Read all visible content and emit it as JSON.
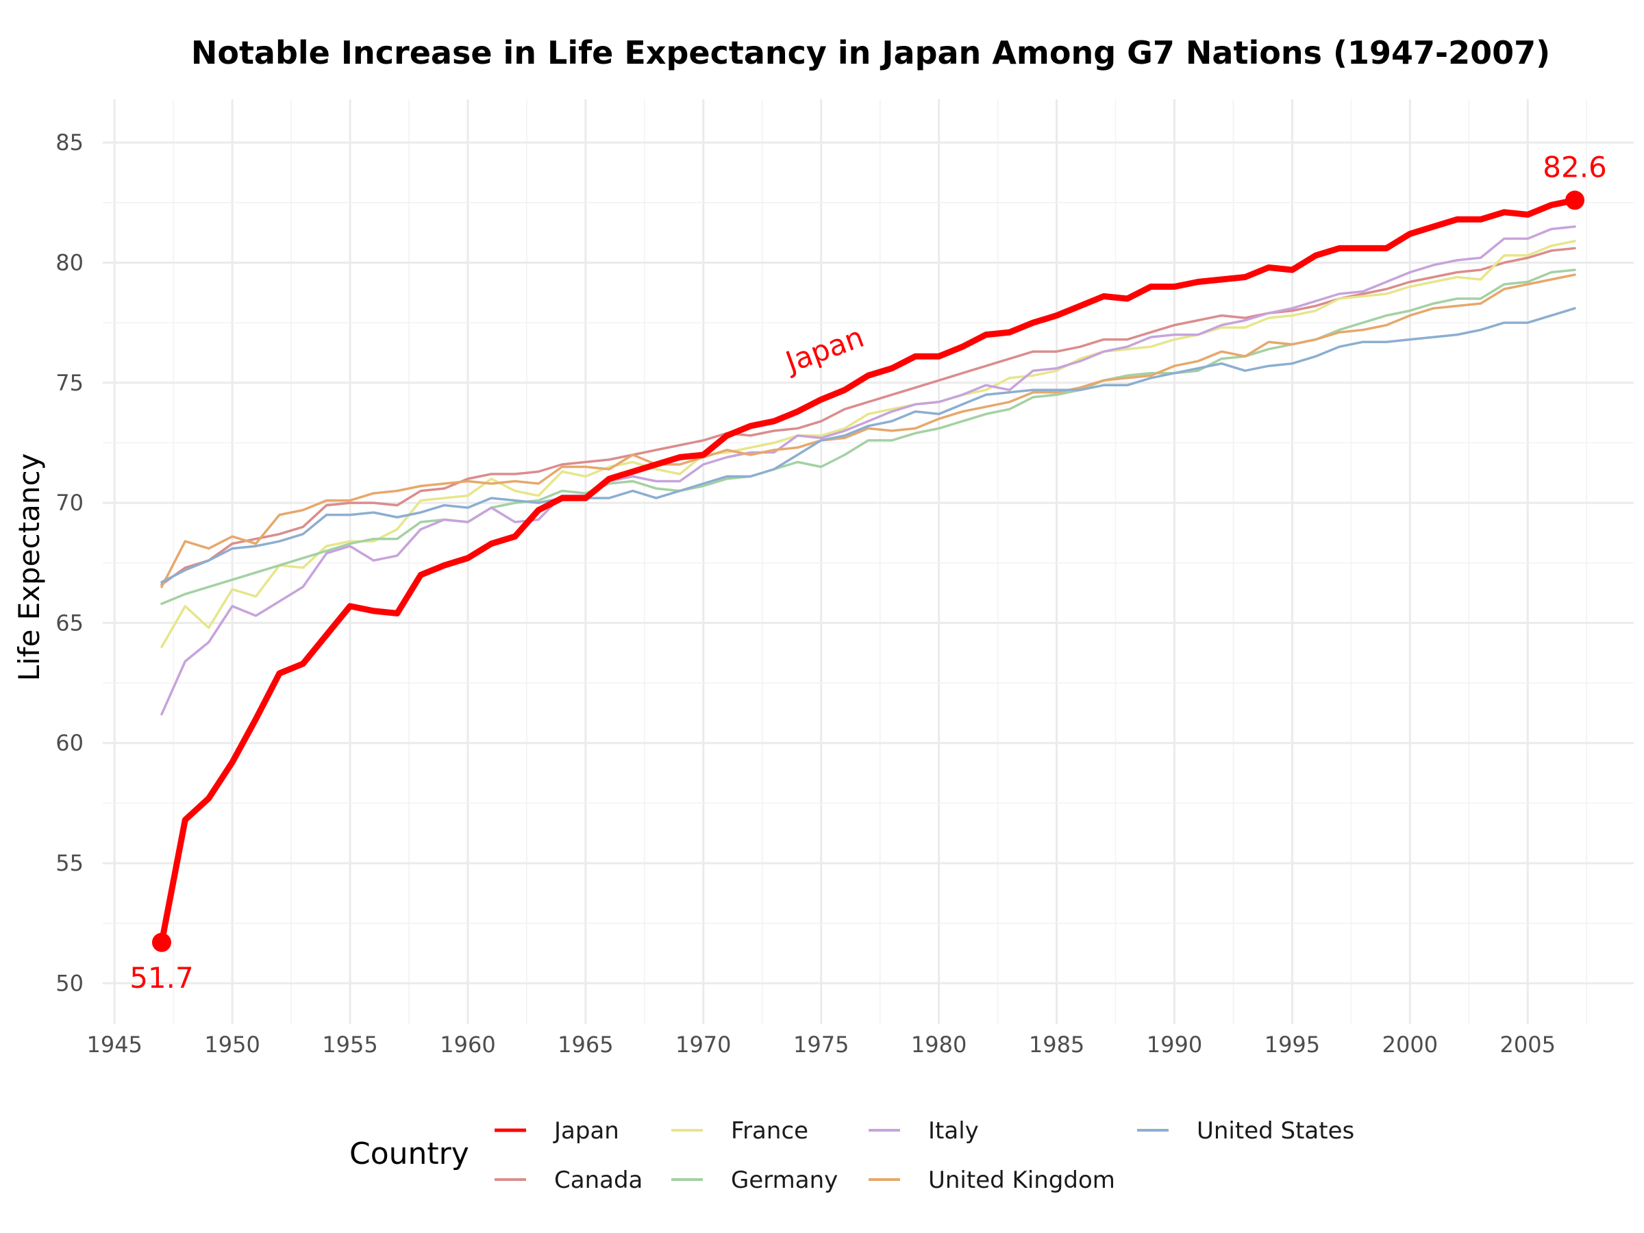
{
  "chart_data": {
    "type": "line",
    "title": "Notable Increase in Life Expectancy in Japan Among G7 Nations (1947-2007)",
    "xlabel": "",
    "ylabel": "Life Expectancy",
    "xlim": [
      1944.5,
      2009.5
    ],
    "ylim": [
      48.3,
      86.8
    ],
    "xticks": [
      "1945",
      "1950",
      "1955",
      "1960",
      "1965",
      "1970",
      "1975",
      "1980",
      "1985",
      "1990",
      "1995",
      "2000",
      "2005"
    ],
    "yticks": [
      "50",
      "55",
      "60",
      "65",
      "70",
      "75",
      "80",
      "85"
    ],
    "grid": true,
    "legend": {
      "title": "Country",
      "position": "bottom"
    },
    "x": [
      1947,
      1948,
      1949,
      1950,
      1951,
      1952,
      1953,
      1954,
      1955,
      1956,
      1957,
      1958,
      1959,
      1960,
      1961,
      1962,
      1963,
      1964,
      1965,
      1966,
      1967,
      1968,
      1969,
      1970,
      1971,
      1972,
      1973,
      1974,
      1975,
      1976,
      1977,
      1978,
      1979,
      1980,
      1981,
      1982,
      1983,
      1984,
      1985,
      1986,
      1987,
      1988,
      1989,
      1990,
      1991,
      1992,
      1993,
      1994,
      1995,
      1996,
      1997,
      1998,
      1999,
      2000,
      2001,
      2002,
      2003,
      2004,
      2005,
      2006,
      2007
    ],
    "series": [
      {
        "name": "Japan",
        "color": "#ff0000",
        "values": [
          51.7,
          56.8,
          57.7,
          59.2,
          61.0,
          62.9,
          63.3,
          64.5,
          65.7,
          65.5,
          65.4,
          67.0,
          67.4,
          67.7,
          68.3,
          68.6,
          69.7,
          70.2,
          70.2,
          71.0,
          71.3,
          71.6,
          71.9,
          72.0,
          72.8,
          73.2,
          73.4,
          73.8,
          74.3,
          74.7,
          75.3,
          75.6,
          76.1,
          76.1,
          76.5,
          77.0,
          77.1,
          77.5,
          77.8,
          78.2,
          78.6,
          78.5,
          79.0,
          79.0,
          79.2,
          79.3,
          79.4,
          79.8,
          79.7,
          80.3,
          80.6,
          80.6,
          80.6,
          81.2,
          81.5,
          81.8,
          81.8,
          82.1,
          82.0,
          82.4,
          82.6
        ]
      },
      {
        "name": "Canada",
        "color": "#db8c8c",
        "values": [
          66.6,
          67.3,
          67.6,
          68.3,
          68.5,
          68.7,
          69.0,
          69.9,
          70.0,
          70.0,
          69.9,
          70.5,
          70.6,
          71.0,
          71.2,
          71.2,
          71.3,
          71.6,
          71.7,
          71.8,
          72.0,
          72.2,
          72.4,
          72.6,
          72.9,
          72.8,
          73.0,
          73.1,
          73.4,
          73.9,
          74.2,
          74.5,
          74.8,
          75.1,
          75.4,
          75.7,
          76.0,
          76.3,
          76.3,
          76.5,
          76.8,
          76.8,
          77.1,
          77.4,
          77.6,
          77.8,
          77.7,
          77.9,
          78.0,
          78.2,
          78.5,
          78.7,
          78.9,
          79.2,
          79.4,
          79.6,
          79.7,
          80.0,
          80.2,
          80.5,
          80.6
        ]
      },
      {
        "name": "France",
        "color": "#e6e68c",
        "values": [
          64.0,
          65.7,
          64.8,
          66.4,
          66.1,
          67.4,
          67.3,
          68.2,
          68.4,
          68.4,
          68.9,
          70.1,
          70.2,
          70.3,
          71.0,
          70.5,
          70.3,
          71.3,
          71.1,
          71.5,
          71.7,
          71.4,
          71.2,
          72.0,
          72.1,
          72.3,
          72.5,
          72.8,
          72.8,
          73.1,
          73.7,
          73.9,
          74.1,
          74.2,
          74.5,
          74.7,
          75.2,
          75.3,
          75.5,
          76.0,
          76.3,
          76.4,
          76.5,
          76.8,
          77.0,
          77.3,
          77.3,
          77.7,
          77.8,
          78.0,
          78.5,
          78.6,
          78.7,
          79.0,
          79.2,
          79.4,
          79.3,
          80.3,
          80.3,
          80.7,
          80.9
        ]
      },
      {
        "name": "Germany",
        "color": "#a3d1a3",
        "values": [
          65.8,
          66.2,
          66.5,
          66.8,
          67.1,
          67.4,
          67.7,
          68.0,
          68.3,
          68.5,
          68.5,
          69.2,
          69.3,
          69.2,
          69.8,
          70.0,
          70.1,
          70.5,
          70.4,
          70.8,
          70.9,
          70.6,
          70.5,
          70.7,
          71.0,
          71.1,
          71.4,
          71.7,
          71.5,
          72.0,
          72.6,
          72.6,
          72.9,
          73.1,
          73.4,
          73.7,
          73.9,
          74.4,
          74.5,
          74.7,
          75.1,
          75.3,
          75.4,
          75.4,
          75.5,
          76.0,
          76.1,
          76.4,
          76.6,
          76.8,
          77.2,
          77.5,
          77.8,
          78.0,
          78.3,
          78.5,
          78.5,
          79.1,
          79.2,
          79.6,
          79.7
        ]
      },
      {
        "name": "Italy",
        "color": "#c7a3db",
        "values": [
          61.2,
          63.4,
          64.2,
          65.7,
          65.3,
          65.9,
          66.5,
          67.9,
          68.2,
          67.6,
          67.8,
          68.9,
          69.3,
          69.2,
          69.8,
          69.2,
          69.3,
          70.3,
          70.3,
          70.9,
          71.1,
          70.9,
          70.9,
          71.6,
          71.9,
          72.1,
          72.1,
          72.8,
          72.7,
          73.0,
          73.4,
          73.8,
          74.1,
          74.2,
          74.5,
          74.9,
          74.7,
          75.5,
          75.6,
          75.9,
          76.3,
          76.5,
          76.9,
          77.0,
          77.0,
          77.4,
          77.6,
          77.9,
          78.1,
          78.4,
          78.7,
          78.8,
          79.2,
          79.6,
          79.9,
          80.1,
          80.2,
          81.0,
          81.0,
          81.4,
          81.5
        ]
      },
      {
        "name": "United Kingdom",
        "color": "#e6a86b",
        "values": [
          66.5,
          68.4,
          68.1,
          68.6,
          68.3,
          69.5,
          69.7,
          70.1,
          70.1,
          70.4,
          70.5,
          70.7,
          70.8,
          70.9,
          70.8,
          70.9,
          70.8,
          71.5,
          71.5,
          71.4,
          72.0,
          71.6,
          71.6,
          71.9,
          72.2,
          72.0,
          72.2,
          72.3,
          72.6,
          72.7,
          73.1,
          73.0,
          73.1,
          73.5,
          73.8,
          74.0,
          74.2,
          74.6,
          74.6,
          74.8,
          75.1,
          75.2,
          75.3,
          75.7,
          75.9,
          76.3,
          76.1,
          76.7,
          76.6,
          76.8,
          77.1,
          77.2,
          77.4,
          77.8,
          78.1,
          78.2,
          78.3,
          78.9,
          79.1,
          79.3,
          79.5
        ]
      },
      {
        "name": "United States",
        "color": "#8caed1",
        "values": [
          66.7,
          67.2,
          67.6,
          68.1,
          68.2,
          68.4,
          68.7,
          69.5,
          69.5,
          69.6,
          69.4,
          69.6,
          69.9,
          69.8,
          70.2,
          70.1,
          70.0,
          70.2,
          70.2,
          70.2,
          70.5,
          70.2,
          70.5,
          70.8,
          71.1,
          71.1,
          71.4,
          72.0,
          72.6,
          72.8,
          73.2,
          73.4,
          73.8,
          73.7,
          74.1,
          74.5,
          74.6,
          74.7,
          74.7,
          74.7,
          74.9,
          74.9,
          75.2,
          75.4,
          75.6,
          75.8,
          75.5,
          75.7,
          75.8,
          76.1,
          76.5,
          76.7,
          76.7,
          76.8,
          76.9,
          77.0,
          77.2,
          77.5,
          77.5,
          77.8,
          78.1
        ]
      }
    ],
    "annotations": [
      {
        "text": "Japan",
        "x": 1975.3,
        "y": 76.0,
        "color": "#ff0000",
        "rotation_deg": -20
      },
      {
        "text": "51.7",
        "x": 1947,
        "y": 51.7,
        "color": "#ff0000",
        "placement": "below"
      },
      {
        "text": "82.6",
        "x": 2007,
        "y": 82.6,
        "color": "#ff0000",
        "placement": "above"
      }
    ]
  }
}
